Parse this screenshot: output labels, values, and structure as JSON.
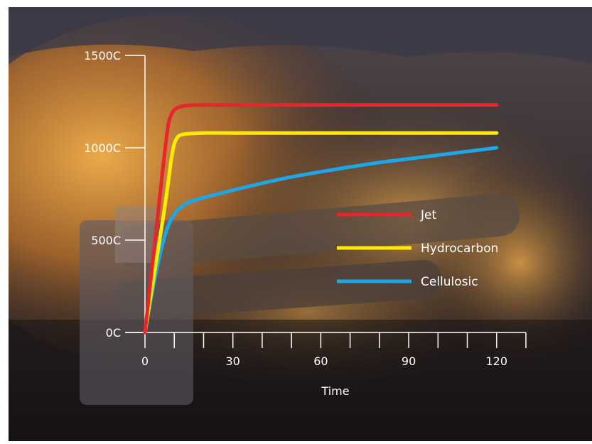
{
  "colors": {
    "jet": "#e8252a",
    "hydrocarbon": "#ffea00",
    "cellulosic": "#1ea7e6",
    "axis": "#ffffff"
  },
  "chart_data": {
    "type": "line",
    "title": "",
    "xlabel": "Time",
    "ylabel": "",
    "xlim": [
      0,
      130
    ],
    "ylim": [
      0,
      1500
    ],
    "x_ticks": [
      0,
      10,
      20,
      30,
      40,
      50,
      60,
      70,
      80,
      90,
      100,
      110,
      120,
      130
    ],
    "x_tick_labels": [
      {
        "value": 0,
        "label": "0"
      },
      {
        "value": 30,
        "label": "30"
      },
      {
        "value": 60,
        "label": "60"
      },
      {
        "value": 90,
        "label": "90"
      },
      {
        "value": 120,
        "label": "120"
      }
    ],
    "y_tick_labels": [
      {
        "value": 0,
        "label": "0C"
      },
      {
        "value": 500,
        "label": "500C"
      },
      {
        "value": 1000,
        "label": "1000C"
      },
      {
        "value": 1500,
        "label": "1500C"
      }
    ],
    "grid": false,
    "legend_position": "right-middle",
    "series": [
      {
        "name": "Jet",
        "color_key": "jet",
        "x": [
          0,
          2,
          4,
          6,
          7,
          8,
          9,
          10,
          12,
          15,
          20,
          30,
          60,
          90,
          120
        ],
        "y": [
          0,
          290,
          580,
          870,
          1010,
          1130,
          1180,
          1205,
          1222,
          1230,
          1232,
          1232,
          1232,
          1232,
          1232
        ]
      },
      {
        "name": "Hydrocarbon",
        "color_key": "hydrocarbon",
        "x": [
          0,
          3,
          6,
          8,
          9,
          10,
          11,
          12,
          14,
          17,
          20,
          30,
          60,
          90,
          120
        ],
        "y": [
          0,
          300,
          600,
          820,
          940,
          1020,
          1055,
          1068,
          1075,
          1078,
          1080,
          1080,
          1080,
          1080,
          1080
        ]
      },
      {
        "name": "Cellulosic",
        "color_key": "cellulosic",
        "x": [
          0,
          2,
          4,
          6,
          8,
          10,
          12,
          15,
          20,
          25,
          30,
          40,
          50,
          60,
          70,
          80,
          90,
          100,
          110,
          120
        ],
        "y": [
          0,
          180,
          340,
          480,
          580,
          640,
          675,
          705,
          730,
          750,
          770,
          808,
          842,
          870,
          896,
          920,
          940,
          960,
          980,
          1000
        ]
      }
    ]
  }
}
